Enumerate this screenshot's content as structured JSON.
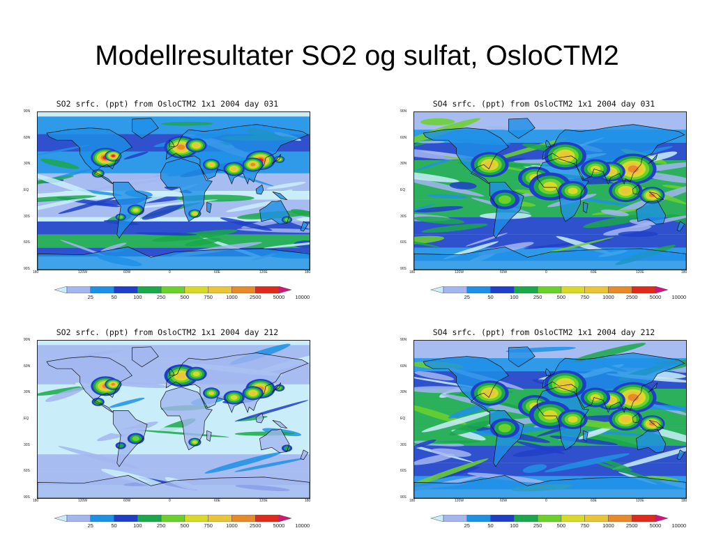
{
  "slide": {
    "title": "Modellresultater SO2 og sulfat, OsloCTM2"
  },
  "map_data": {
    "type": "heatmap",
    "projection": "lat-lon global",
    "lat_ticks": [
      "90N",
      "60N",
      "30N",
      "EQ",
      "30S",
      "60S",
      "90S"
    ],
    "lon_ticks": [
      "180",
      "120W",
      "60W",
      "0",
      "60E",
      "120E",
      "180"
    ],
    "legend_levels": [
      "25",
      "50",
      "100",
      "250",
      "500",
      "750",
      "1000",
      "2500",
      "5000",
      "10000"
    ],
    "legend_colors": [
      "#c9eefa",
      "#a3b6f0",
      "#1e90e6",
      "#1f3fc8",
      "#1aa84a",
      "#6cd12c",
      "#d9d92a",
      "#eac53a",
      "#e88a2a",
      "#e02b1b",
      "#d4147a"
    ],
    "panels": [
      {
        "id": "so2-jan",
        "title": "SO2 srfc. (ppt) from OsloCTM2 1x1 2004 day 031",
        "species": "SO2",
        "day": "031"
      },
      {
        "id": "so4-jan",
        "title": "SO4 srfc. (ppt) from OsloCTM2 1x1 2004 day 031",
        "species": "SO4",
        "day": "031"
      },
      {
        "id": "so2-jul",
        "title": "SO2 srfc. (ppt) from OsloCTM2 1x1 2004 day 212",
        "species": "SO2",
        "day": "212"
      },
      {
        "id": "so4-jul",
        "title": "SO4 srfc. (ppt) from OsloCTM2 1x1 2004 day 212",
        "species": "SO4",
        "day": "212"
      }
    ]
  }
}
